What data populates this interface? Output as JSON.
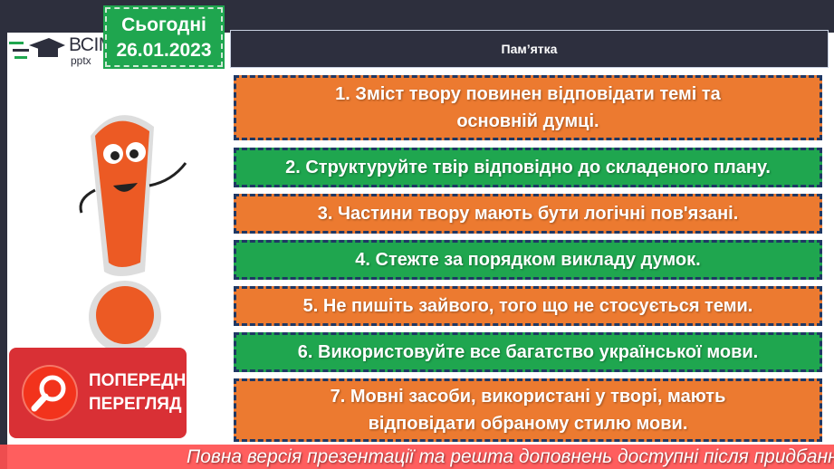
{
  "logo": {
    "brand": "ВСІМ",
    "sub": "pptx"
  },
  "date": {
    "label": "Сьогодні",
    "value": "26.01.2023"
  },
  "header": {
    "title": "Пам’ятка"
  },
  "items": [
    {
      "text": "1.   Зміст твору повинен відповідати темі та основній думці.",
      "color": "#ec7a30"
    },
    {
      "text": "2. Структуруйте твір відповідно до складеного плану.",
      "color": "#1fa64f"
    },
    {
      "text": "3. Частини твору мають бути логічні пов'язані.",
      "color": "#ec7a30"
    },
    {
      "text": "4. Стежте за порядком викладу думок.",
      "color": "#1fa64f"
    },
    {
      "text": "5. Не пишіть зайвого, того що не стосується теми.",
      "color": "#ec7a30"
    },
    {
      "text": "6. Використовуйте все багатство української мови.",
      "color": "#1fa64f"
    },
    {
      "text": "7. Мовні засоби, використані у творі, мають відповідати обраному стилю мови.",
      "color": "#ec7a30"
    }
  ],
  "preview": {
    "label": "ПОПЕРЕДНІЙ ПЕРЕГЛЯД",
    "icon": "magnifier-icon"
  },
  "overlay": {
    "text": "Повна версія презентації та решта доповнень доступні після придбання."
  }
}
